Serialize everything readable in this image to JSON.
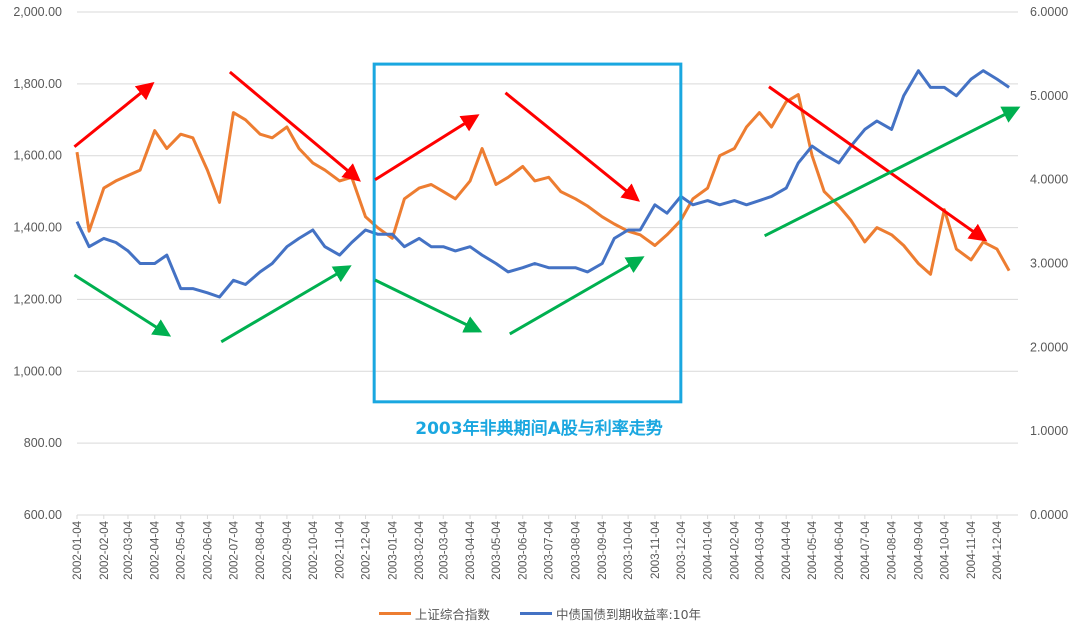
{
  "chart_data": {
    "type": "line",
    "title": "",
    "x_tick_labels": [
      "2002-01-04",
      "2002-02-04",
      "2002-03-04",
      "2002-04-04",
      "2002-05-04",
      "2002-06-04",
      "2002-07-04",
      "2002-08-04",
      "2002-09-04",
      "2002-10-04",
      "2002-11-04",
      "2002-12-04",
      "2003-01-04",
      "2003-02-04",
      "2003-03-04",
      "2003-04-04",
      "2003-05-04",
      "2003-06-04",
      "2003-07-04",
      "2003-08-04",
      "2003-09-04",
      "2003-10-04",
      "2003-11-04",
      "2003-12-04",
      "2004-01-04",
      "2004-02-04",
      "2004-03-04",
      "2004-04-04",
      "2004-05-04",
      "2004-06-04",
      "2004-07-04",
      "2004-08-04",
      "2004-09-04",
      "2004-10-04",
      "2004-11-04",
      "2004-12-04"
    ],
    "y_left": {
      "ylim": [
        600,
        2000
      ],
      "ticks": [
        "600.00",
        "800.00",
        "1,000.00",
        "1,200.00",
        "1,400.00",
        "1,600.00",
        "1,800.00",
        "2,000.00"
      ]
    },
    "y_right": {
      "ylim": [
        0,
        6
      ],
      "ticks": [
        "0.0000",
        "1.0000",
        "2.0000",
        "3.0000",
        "4.0000",
        "5.0000",
        "6.0000"
      ]
    },
    "grid": true,
    "legend_position": "bottom",
    "x": [
      "2002-01-04",
      "2002-01-18",
      "2002-02-04",
      "2002-02-18",
      "2002-03-04",
      "2002-03-18",
      "2002-04-04",
      "2002-04-18",
      "2002-05-04",
      "2002-05-18",
      "2002-06-04",
      "2002-06-18",
      "2002-07-04",
      "2002-07-18",
      "2002-08-04",
      "2002-08-18",
      "2002-09-04",
      "2002-09-18",
      "2002-10-04",
      "2002-10-18",
      "2002-11-04",
      "2002-11-18",
      "2002-12-04",
      "2002-12-18",
      "2003-01-04",
      "2003-01-18",
      "2003-02-04",
      "2003-02-18",
      "2003-03-04",
      "2003-03-18",
      "2003-04-04",
      "2003-04-18",
      "2003-05-04",
      "2003-05-18",
      "2003-06-04",
      "2003-06-18",
      "2003-07-04",
      "2003-07-18",
      "2003-08-04",
      "2003-08-18",
      "2003-09-04",
      "2003-09-18",
      "2003-10-04",
      "2003-10-18",
      "2003-11-04",
      "2003-11-18",
      "2003-12-04",
      "2003-12-18",
      "2004-01-04",
      "2004-01-18",
      "2004-02-04",
      "2004-02-18",
      "2004-03-04",
      "2004-03-18",
      "2004-04-04",
      "2004-04-18",
      "2004-05-04",
      "2004-05-18",
      "2004-06-04",
      "2004-06-18",
      "2004-07-04",
      "2004-07-18",
      "2004-08-04",
      "2004-08-18",
      "2004-09-04",
      "2004-09-18",
      "2004-10-04",
      "2004-10-18",
      "2004-11-04",
      "2004-11-18",
      "2004-12-04",
      "2004-12-18"
    ],
    "series": [
      {
        "name": "上证综合指数",
        "axis": "left",
        "color": "#ed7d31",
        "values": [
          1610,
          1390,
          1510,
          1530,
          1545,
          1560,
          1670,
          1620,
          1660,
          1650,
          1560,
          1470,
          1720,
          1700,
          1660,
          1650,
          1680,
          1620,
          1580,
          1560,
          1530,
          1540,
          1430,
          1400,
          1370,
          1480,
          1510,
          1520,
          1500,
          1480,
          1530,
          1620,
          1520,
          1540,
          1570,
          1530,
          1540,
          1500,
          1480,
          1460,
          1430,
          1410,
          1390,
          1380,
          1350,
          1380,
          1420,
          1480,
          1510,
          1600,
          1620,
          1680,
          1720,
          1680,
          1750,
          1770,
          1600,
          1500,
          1460,
          1420,
          1360,
          1400,
          1380,
          1350,
          1300,
          1270,
          1450,
          1340,
          1310,
          1360,
          1340,
          1280
        ]
      },
      {
        "name": "中债国债到期收益率:10年",
        "axis": "right",
        "color": "#4472c4",
        "values": [
          3.5,
          3.2,
          3.3,
          3.25,
          3.15,
          3.0,
          3.0,
          3.1,
          2.7,
          2.7,
          2.65,
          2.6,
          2.8,
          2.75,
          2.9,
          3.0,
          3.2,
          3.3,
          3.4,
          3.2,
          3.1,
          3.25,
          3.4,
          3.35,
          3.35,
          3.2,
          3.3,
          3.2,
          3.2,
          3.15,
          3.2,
          3.1,
          3.0,
          2.9,
          2.95,
          3.0,
          2.95,
          2.95,
          2.95,
          2.9,
          3.0,
          3.3,
          3.4,
          3.4,
          3.7,
          3.6,
          3.8,
          3.7,
          3.75,
          3.7,
          3.75,
          3.7,
          3.75,
          3.8,
          3.9,
          4.2,
          4.4,
          4.3,
          4.2,
          4.4,
          4.6,
          4.7,
          4.6,
          5.0,
          5.3,
          5.1,
          5.1,
          5.0,
          5.2,
          5.3,
          5.2,
          5.1
        ]
      }
    ],
    "annotations": {
      "box": {
        "x": [
          "2002-12-14",
          "2003-12-04"
        ],
        "y": [
          915,
          1855
        ],
        "color": "#1aa7e0",
        "label": "2003年非典期间A股与利率走势"
      },
      "arrows": [
        {
          "color": "#ff0000",
          "from": [
            "2002-01-01",
            1625
          ],
          "to": [
            "2002-04-01",
            1800
          ]
        },
        {
          "color": "#ff0000",
          "from": [
            "2002-06-30",
            1833
          ],
          "to": [
            "2002-11-26",
            1533
          ]
        },
        {
          "color": "#ff0000",
          "from": [
            "2002-12-15",
            1533
          ],
          "to": [
            "2003-04-12",
            1711
          ]
        },
        {
          "color": "#ff0000",
          "from": [
            "2003-05-15",
            1775
          ],
          "to": [
            "2003-10-15",
            1477
          ]
        },
        {
          "color": "#ff0000",
          "from": [
            "2004-03-15",
            1792
          ],
          "to": [
            "2004-11-20",
            1366
          ]
        },
        {
          "color": "#00b050",
          "from": [
            "2002-01-01",
            1268
          ],
          "to": [
            "2002-04-20",
            1101
          ]
        },
        {
          "color": "#00b050",
          "from": [
            "2002-06-20",
            1082
          ],
          "to": [
            "2002-11-15",
            1291
          ]
        },
        {
          "color": "#00b050",
          "from": [
            "2002-12-15",
            1254
          ],
          "to": [
            "2003-04-15",
            1112
          ]
        },
        {
          "color": "#00b050",
          "from": [
            "2003-05-20",
            1104
          ],
          "to": [
            "2003-10-20",
            1316
          ]
        },
        {
          "color": "#00b050",
          "from": [
            "2004-03-10",
            1377
          ],
          "to": [
            "2004-12-28",
            1733
          ]
        }
      ]
    }
  }
}
